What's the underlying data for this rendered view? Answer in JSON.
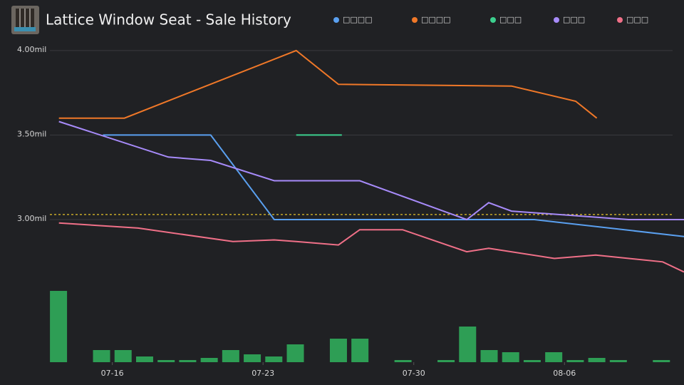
{
  "chart_data": {
    "type": "line",
    "title": "Lattice Window Seat - Sale History",
    "xlim": [
      13.1,
      42.55
    ],
    "xticks": [
      {
        "value": 16,
        "label": "07-16"
      },
      {
        "value": 23,
        "label": "07-23"
      },
      {
        "value": 30,
        "label": "07-30"
      },
      {
        "value": 37,
        "label": "08-06"
      }
    ],
    "ylim": [
      2650000,
      4050000
    ],
    "yticks": [
      {
        "value": 3000000,
        "label": "3.00mil"
      },
      {
        "value": 3500000,
        "label": "3.50mil"
      },
      {
        "value": 4000000,
        "label": "4.00mil"
      }
    ],
    "grid": true,
    "reference_line": {
      "value": 3030000,
      "color": "#e6c229"
    },
    "series": [
      {
        "name": "□□□□",
        "color": "#5aa0f0",
        "x": [
          15.57,
          20.57,
          23.52,
          35.6,
          42.55
        ],
        "values": [
          3500000,
          3500000,
          3000000,
          3000000,
          2900000
        ]
      },
      {
        "name": "□□□□",
        "color": "#f07828",
        "x": [
          13.52,
          16.56,
          24.54,
          26.5,
          34.54,
          37.52,
          38.5
        ],
        "values": [
          3600000,
          3600000,
          4000000,
          3800000,
          3790000,
          3700000,
          3600000
        ]
      },
      {
        "name": "□□□",
        "color": "#3ccf8e",
        "x": [
          24.54,
          26.66
        ],
        "values": [
          3500000,
          3500000
        ]
      },
      {
        "name": "□□□",
        "color": "#a78bfa",
        "x": [
          13.52,
          18.6,
          20.57,
          23.52,
          27.49,
          32.46,
          33.48,
          34.54,
          39.99,
          42.55
        ],
        "values": [
          3580000,
          3370000,
          3350000,
          3230000,
          3230000,
          3000000,
          3100000,
          3050000,
          3000000,
          3000000
        ]
      },
      {
        "name": "□□□",
        "color": "#f07088",
        "x": [
          13.52,
          17.2,
          21.6,
          23.52,
          24.54,
          26.5,
          27.49,
          29.48,
          32.46,
          33.48,
          36.53,
          38.45,
          41.56,
          42.55
        ],
        "values": [
          2980000,
          2950000,
          2870000,
          2880000,
          2870000,
          2850000,
          2940000,
          2940000,
          2810000,
          2830000,
          2770000,
          2790000,
          2750000,
          2690000
        ]
      }
    ],
    "volume": {
      "color": "#2e9e55",
      "ylim": [
        0,
        100
      ],
      "x": [
        13.5,
        15.5,
        16.5,
        17.5,
        18.5,
        19.5,
        20.5,
        21.5,
        22.5,
        23.5,
        24.5,
        26.5,
        27.5,
        29.5,
        31.5,
        32.5,
        33.5,
        34.5,
        35.5,
        36.5,
        37.5,
        38.5,
        39.5,
        41.5
      ],
      "values": [
        100,
        17,
        17,
        8,
        3,
        3,
        6,
        17,
        11,
        8,
        25,
        33,
        33,
        3,
        3,
        50,
        17,
        14,
        3,
        14,
        3,
        6,
        3,
        3
      ]
    }
  }
}
